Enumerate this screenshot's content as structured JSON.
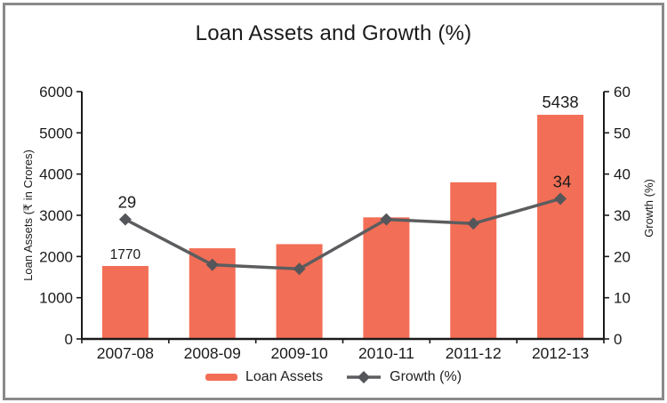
{
  "title": "Loan Assets and Growth (%)",
  "frame": {
    "border_color": "#8a8a8a",
    "background": "#ffffff"
  },
  "legend": {
    "position": "bottom",
    "items": [
      {
        "label": "Loan Assets",
        "swatch": "bar",
        "color": "#f36e56"
      },
      {
        "label": "Growth (%)",
        "swatch": "line-diamond",
        "color": "#5c5d5f"
      }
    ]
  },
  "chart_data": {
    "type": "combo-bar-line",
    "categories": [
      "2007-08",
      "2008-09",
      "2009-10",
      "2010-11",
      "2011-12",
      "2012-13"
    ],
    "series": [
      {
        "name": "Loan Assets",
        "type": "bar",
        "axis": "left",
        "color": "#f36e56",
        "values": [
          1770,
          2200,
          2300,
          2950,
          3800,
          5438
        ],
        "point_labels": {
          "0": "1770",
          "5": "5438"
        }
      },
      {
        "name": "Growth (%)",
        "type": "line",
        "axis": "right",
        "marker": "diamond",
        "color": "#5c5d5f",
        "marker_color": "#55565a",
        "values": [
          29,
          18,
          17,
          29,
          28,
          34
        ],
        "point_labels": {
          "0": "29",
          "5": "34"
        }
      }
    ],
    "left_axis": {
      "label": "Loan Assets (₹ in Crores)",
      "min": 0,
      "max": 6000,
      "step": 1000,
      "ticks": [
        "0",
        "1000",
        "2000",
        "3000",
        "4000",
        "5000",
        "6000"
      ]
    },
    "right_axis": {
      "label": "Growth (%)",
      "min": 0,
      "max": 60,
      "step": 10,
      "ticks": [
        "0",
        "10",
        "20",
        "30",
        "40",
        "50",
        "60"
      ]
    },
    "grid": false,
    "legend_position": "bottom",
    "text_color": "#1b1b1b",
    "axis_color": "#1a1a1a"
  }
}
